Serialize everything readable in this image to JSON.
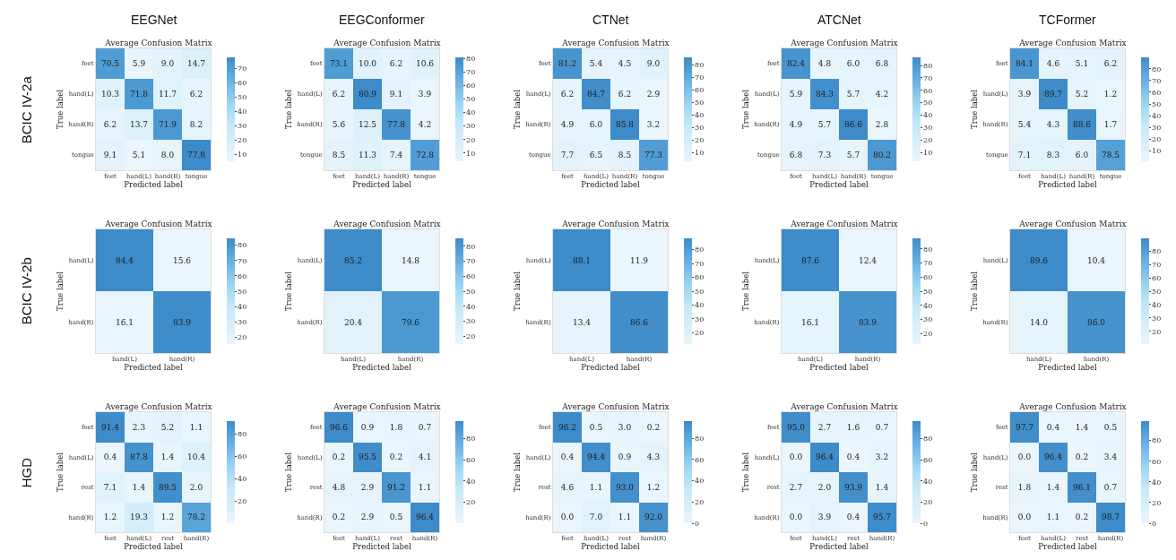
{
  "chart_data": [
    {
      "type": "heatmap",
      "subtitle": "EEGNet",
      "title": "Average Confusion Matrix",
      "xlabel": "Predicted label",
      "ylabel": "True label",
      "annotations": [
        "BCIC IV-2a"
      ],
      "categories": [
        "feet",
        "hand(L)",
        "hand(R)",
        "tongue"
      ],
      "y_categories": [
        "feet",
        "hand(L)",
        "hand(R)",
        "tongue"
      ],
      "cells": [
        [
          70.5,
          5.9,
          9.0,
          14.7
        ],
        [
          10.3,
          71.8,
          11.7,
          6.2
        ],
        [
          6.2,
          13.7,
          71.9,
          8.2
        ],
        [
          9.1,
          5.1,
          8.0,
          77.8
        ]
      ],
      "cell_labels": [
        [
          "70.5",
          "5.9",
          "9.0",
          "14.7"
        ],
        [
          "10.3",
          "71.8",
          "11.7",
          "6.2"
        ],
        [
          "6.2",
          "13.7",
          "71.9",
          "8.2"
        ],
        [
          "9.1",
          "5.1",
          "8.0",
          "77.8"
        ]
      ],
      "clim": [
        5.1,
        77.8
      ],
      "cticks": [
        10,
        20,
        30,
        40,
        50,
        60,
        70
      ]
    },
    {
      "type": "heatmap",
      "subtitle": "EEGConformer",
      "title": "Average Confusion Matrix",
      "xlabel": "Predicted label",
      "ylabel": "True label",
      "categories": [
        "feet",
        "hand(L)",
        "hand(R)",
        "tongue"
      ],
      "y_categories": [
        "feet",
        "hand(L)",
        "hand(R)",
        "tongue"
      ],
      "cells": [
        [
          73.1,
          10.0,
          6.2,
          10.6
        ],
        [
          6.2,
          80.9,
          9.1,
          3.9
        ],
        [
          5.6,
          12.5,
          77.8,
          4.2
        ],
        [
          8.5,
          11.3,
          7.4,
          72.8
        ]
      ],
      "cell_labels": [
        [
          "73.1",
          "10.0",
          "6.2",
          "10.6"
        ],
        [
          "6.2",
          "80.9",
          "9.1",
          "3.9"
        ],
        [
          "5.6",
          "12.5",
          "77.8",
          "4.2"
        ],
        [
          "8.5",
          "11.3",
          "7.4",
          "72.8"
        ]
      ],
      "clim": [
        3.9,
        80.9
      ],
      "cticks": [
        10,
        20,
        30,
        40,
        50,
        60,
        70,
        80
      ]
    },
    {
      "type": "heatmap",
      "subtitle": "CTNet",
      "title": "Average Confusion Matrix",
      "xlabel": "Predicted label",
      "ylabel": "True label",
      "categories": [
        "feet",
        "hand(L)",
        "hand(R)",
        "tongue"
      ],
      "y_categories": [
        "feet",
        "hand(L)",
        "hand(R)",
        "tongue"
      ],
      "cells": [
        [
          81.2,
          5.4,
          4.5,
          9.0
        ],
        [
          6.2,
          84.7,
          6.2,
          2.9
        ],
        [
          4.9,
          6.0,
          85.8,
          3.2
        ],
        [
          7.7,
          6.5,
          8.5,
          77.3
        ]
      ],
      "cell_labels": [
        [
          "81.2",
          "5.4",
          "4.5",
          "9.0"
        ],
        [
          "6.2",
          "84.7",
          "6.2",
          "2.9"
        ],
        [
          "4.9",
          "6.0",
          "85.8",
          "3.2"
        ],
        [
          "7.7",
          "6.5",
          "8.5",
          "77.3"
        ]
      ],
      "clim": [
        2.9,
        85.8
      ],
      "cticks": [
        10,
        20,
        30,
        40,
        50,
        60,
        70,
        80
      ]
    },
    {
      "type": "heatmap",
      "subtitle": "ATCNet",
      "title": "Average Confusion Matrix",
      "xlabel": "Predicted label",
      "ylabel": "True label",
      "categories": [
        "feet",
        "hand(L)",
        "hand(R)",
        "tongue"
      ],
      "y_categories": [
        "feet",
        "hand(L)",
        "hand(R)",
        "tongue"
      ],
      "cells": [
        [
          82.4,
          4.8,
          6.0,
          6.8
        ],
        [
          5.9,
          84.3,
          5.7,
          4.2
        ],
        [
          4.9,
          5.7,
          86.6,
          2.8
        ],
        [
          6.8,
          7.3,
          5.7,
          80.2
        ]
      ],
      "cell_labels": [
        [
          "82.4",
          "4.8",
          "6.0",
          "6.8"
        ],
        [
          "5.9",
          "84.3",
          "5.7",
          "4.2"
        ],
        [
          "4.9",
          "5.7",
          "86.6",
          "2.8"
        ],
        [
          "6.8",
          "7.3",
          "5.7",
          "80.2"
        ]
      ],
      "clim": [
        2.8,
        86.6
      ],
      "cticks": [
        10,
        20,
        30,
        40,
        50,
        60,
        70,
        80
      ]
    },
    {
      "type": "heatmap",
      "subtitle": "TCFormer",
      "title": "Average Confusion Matrix",
      "xlabel": "Predicted label",
      "ylabel": "True label",
      "categories": [
        "feet",
        "hand(L)",
        "hand(R)",
        "tongue"
      ],
      "y_categories": [
        "feet",
        "hand(L)",
        "hand(R)",
        "tongue"
      ],
      "cells": [
        [
          84.1,
          4.6,
          5.1,
          6.2
        ],
        [
          3.9,
          89.7,
          5.2,
          1.2
        ],
        [
          5.4,
          4.3,
          88.6,
          1.7
        ],
        [
          7.1,
          8.3,
          6.0,
          78.5
        ]
      ],
      "cell_labels": [
        [
          "84.1",
          "4.6",
          "5.1",
          "6.2"
        ],
        [
          "3.9",
          "89.7",
          "5.2",
          "1.2"
        ],
        [
          "5.4",
          "4.3",
          "88.6",
          "1.7"
        ],
        [
          "7.1",
          "8.3",
          "6.0",
          "78.5"
        ]
      ],
      "clim": [
        1.2,
        89.7
      ],
      "cticks": [
        10,
        20,
        30,
        40,
        50,
        60,
        70,
        80
      ]
    },
    {
      "type": "heatmap",
      "title": "Average Confusion Matrix",
      "xlabel": "Predicted label",
      "ylabel": "True label",
      "annotations": [
        "BCIC IV-2b"
      ],
      "categories": [
        "hand(L)",
        "hand(R)"
      ],
      "y_categories": [
        "hand(L)",
        "hand(R)"
      ],
      "cells": [
        [
          84.4,
          15.6
        ],
        [
          16.1,
          83.9
        ]
      ],
      "cell_labels": [
        [
          "84.4",
          "15.6"
        ],
        [
          "16.1",
          "83.9"
        ]
      ],
      "clim": [
        15.6,
        84.4
      ],
      "cticks": [
        20,
        30,
        40,
        50,
        60,
        70,
        80
      ]
    },
    {
      "type": "heatmap",
      "title": "Average Confusion Matrix",
      "xlabel": "Predicted label",
      "ylabel": "True label",
      "categories": [
        "hand(L)",
        "hand(R)"
      ],
      "y_categories": [
        "hand(L)",
        "hand(R)"
      ],
      "cells": [
        [
          85.2,
          14.8
        ],
        [
          20.4,
          79.6
        ]
      ],
      "cell_labels": [
        [
          "85.2",
          "14.8"
        ],
        [
          "20.4",
          "79.6"
        ]
      ],
      "clim": [
        14.8,
        85.2
      ],
      "cticks": [
        20,
        30,
        40,
        50,
        60,
        70,
        80
      ]
    },
    {
      "type": "heatmap",
      "title": "Average Confusion Matrix",
      "xlabel": "Predicted label",
      "ylabel": "True label",
      "categories": [
        "hand(L)",
        "hand(R)"
      ],
      "y_categories": [
        "hand(L)",
        "hand(R)"
      ],
      "cells": [
        [
          88.1,
          11.9
        ],
        [
          13.4,
          86.6
        ]
      ],
      "cell_labels": [
        [
          "88.1",
          "11.9"
        ],
        [
          "13.4",
          "86.6"
        ]
      ],
      "clim": [
        11.9,
        88.1
      ],
      "cticks": [
        20,
        30,
        40,
        50,
        60,
        70,
        80
      ]
    },
    {
      "type": "heatmap",
      "title": "Average Confusion Matrix",
      "xlabel": "Predicted label",
      "ylabel": "True label",
      "categories": [
        "hand(L)",
        "hand(R)"
      ],
      "y_categories": [
        "hand(L)",
        "hand(R)"
      ],
      "cells": [
        [
          87.6,
          12.4
        ],
        [
          16.1,
          83.9
        ]
      ],
      "cell_labels": [
        [
          "87.6",
          "12.4"
        ],
        [
          "16.1",
          "83.9"
        ]
      ],
      "clim": [
        12.4,
        87.6
      ],
      "cticks": [
        20,
        30,
        40,
        50,
        60,
        70,
        80
      ]
    },
    {
      "type": "heatmap",
      "title": "Average Confusion Matrix",
      "xlabel": "Predicted label",
      "ylabel": "True label",
      "categories": [
        "hand(L)",
        "hand(R)"
      ],
      "y_categories": [
        "hand(L)",
        "hand(R)"
      ],
      "cells": [
        [
          89.6,
          10.4
        ],
        [
          14.0,
          86.0
        ]
      ],
      "cell_labels": [
        [
          "89.6",
          "10.4"
        ],
        [
          "14.0",
          "86.0"
        ]
      ],
      "clim": [
        10.4,
        89.6
      ],
      "cticks": [
        20,
        30,
        40,
        50,
        60,
        70,
        80
      ]
    },
    {
      "type": "heatmap",
      "title": "Average Confusion Matrix",
      "xlabel": "Predicted label",
      "ylabel": "True label",
      "annotations": [
        "HGD"
      ],
      "categories": [
        "feet",
        "hand(L)",
        "rest",
        "hand(R)"
      ],
      "y_categories": [
        "feet",
        "hand(L)",
        "rest",
        "hand(R)"
      ],
      "cells": [
        [
          91.4,
          2.3,
          5.2,
          1.1
        ],
        [
          0.4,
          87.8,
          1.4,
          10.4
        ],
        [
          7.1,
          1.4,
          89.5,
          2.0
        ],
        [
          1.2,
          19.3,
          1.2,
          78.2
        ]
      ],
      "cell_labels": [
        [
          "91.4",
          "2.3",
          "5.2",
          "1.1"
        ],
        [
          "0.4",
          "87.8",
          "1.4",
          "10.4"
        ],
        [
          "7.1",
          "1.4",
          "89.5",
          "2.0"
        ],
        [
          "1.2",
          "19.3",
          "1.2",
          "78.2"
        ]
      ],
      "clim": [
        0.4,
        91.4
      ],
      "cticks": [
        20,
        40,
        60,
        80
      ]
    },
    {
      "type": "heatmap",
      "title": "Average Confusion Matrix",
      "xlabel": "Predicted label",
      "ylabel": "True label",
      "categories": [
        "feet",
        "hand(L)",
        "rest",
        "hand(R)"
      ],
      "y_categories": [
        "feet",
        "hand(L)",
        "rest",
        "hand(R)"
      ],
      "cells": [
        [
          96.6,
          0.9,
          1.8,
          0.7
        ],
        [
          0.2,
          95.5,
          0.2,
          4.1
        ],
        [
          4.8,
          2.9,
          91.2,
          1.1
        ],
        [
          0.2,
          2.9,
          0.5,
          96.4
        ]
      ],
      "cell_labels": [
        [
          "96.6",
          "0.9",
          "1.8",
          "0.7"
        ],
        [
          "0.2",
          "95.5",
          "0.2",
          "4.1"
        ],
        [
          "4.8",
          "2.9",
          "91.2",
          "1.1"
        ],
        [
          "0.2",
          "2.9",
          "0.5",
          "96.4"
        ]
      ],
      "clim": [
        0.2,
        96.6
      ],
      "cticks": [
        20,
        40,
        60,
        80
      ]
    },
    {
      "type": "heatmap",
      "title": "Average Confusion Matrix",
      "xlabel": "Predicted label",
      "ylabel": "True label",
      "categories": [
        "feet",
        "hand(L)",
        "rest",
        "hand(R)"
      ],
      "y_categories": [
        "feet",
        "hand(L)",
        "rest",
        "hand(R)"
      ],
      "cells": [
        [
          96.2,
          0.5,
          3.0,
          0.2
        ],
        [
          0.4,
          94.4,
          0.9,
          4.3
        ],
        [
          4.6,
          1.1,
          93.0,
          1.2
        ],
        [
          0.0,
          7.0,
          1.1,
          92.0
        ]
      ],
      "cell_labels": [
        [
          "96.2",
          "0.5",
          "3.0",
          "0.2"
        ],
        [
          "0.4",
          "94.4",
          "0.9",
          "4.3"
        ],
        [
          "4.6",
          "1.1",
          "93.0",
          "1.2"
        ],
        [
          "0.0",
          "7.0",
          "1.1",
          "92.0"
        ]
      ],
      "clim": [
        0,
        96.2
      ],
      "cticks": [
        0,
        20,
        40,
        60,
        80
      ]
    },
    {
      "type": "heatmap",
      "title": "Average Confusion Matrix",
      "xlabel": "Predicted label",
      "ylabel": "True label",
      "categories": [
        "feet",
        "hand(L)",
        "rest",
        "hand(R)"
      ],
      "y_categories": [
        "feet",
        "hand(L)",
        "rest",
        "hand(R)"
      ],
      "cells": [
        [
          95.0,
          2.7,
          1.6,
          0.7
        ],
        [
          0.0,
          96.4,
          0.4,
          3.2
        ],
        [
          2.7,
          2.0,
          93.9,
          1.4
        ],
        [
          0.0,
          3.9,
          0.4,
          95.7
        ]
      ],
      "cell_labels": [
        [
          "95.0",
          "2.7",
          "1.6",
          "0.7"
        ],
        [
          "0.0",
          "96.4",
          "0.4",
          "3.2"
        ],
        [
          "2.7",
          "2.0",
          "93.9",
          "1.4"
        ],
        [
          "0.0",
          "3.9",
          "0.4",
          "95.7"
        ]
      ],
      "clim": [
        0,
        96.4
      ],
      "cticks": [
        0,
        20,
        40,
        60,
        80
      ]
    },
    {
      "type": "heatmap",
      "title": "Average Confusion Matrix",
      "xlabel": "Predicted label",
      "ylabel": "True label",
      "categories": [
        "feet",
        "hand(L)",
        "rest",
        "hand(R)"
      ],
      "y_categories": [
        "feet",
        "hand(L)",
        "rest",
        "hand(R)"
      ],
      "cells": [
        [
          97.7,
          0.4,
          1.4,
          0.5
        ],
        [
          0.0,
          96.4,
          0.2,
          3.4
        ],
        [
          1.8,
          1.4,
          96.1,
          0.7
        ],
        [
          0.0,
          1.1,
          0.2,
          98.7
        ]
      ],
      "cell_labels": [
        [
          "97.7",
          "0.4",
          "1.4",
          "0.5"
        ],
        [
          "0.0",
          "96.4",
          "0.2",
          "3.4"
        ],
        [
          "1.8",
          "1.4",
          "96.1",
          "0.7"
        ],
        [
          "0.0",
          "1.1",
          "0.2",
          "98.7"
        ]
      ],
      "clim": [
        0,
        98.7
      ],
      "cticks": [
        0,
        20,
        40,
        60,
        80
      ]
    }
  ]
}
